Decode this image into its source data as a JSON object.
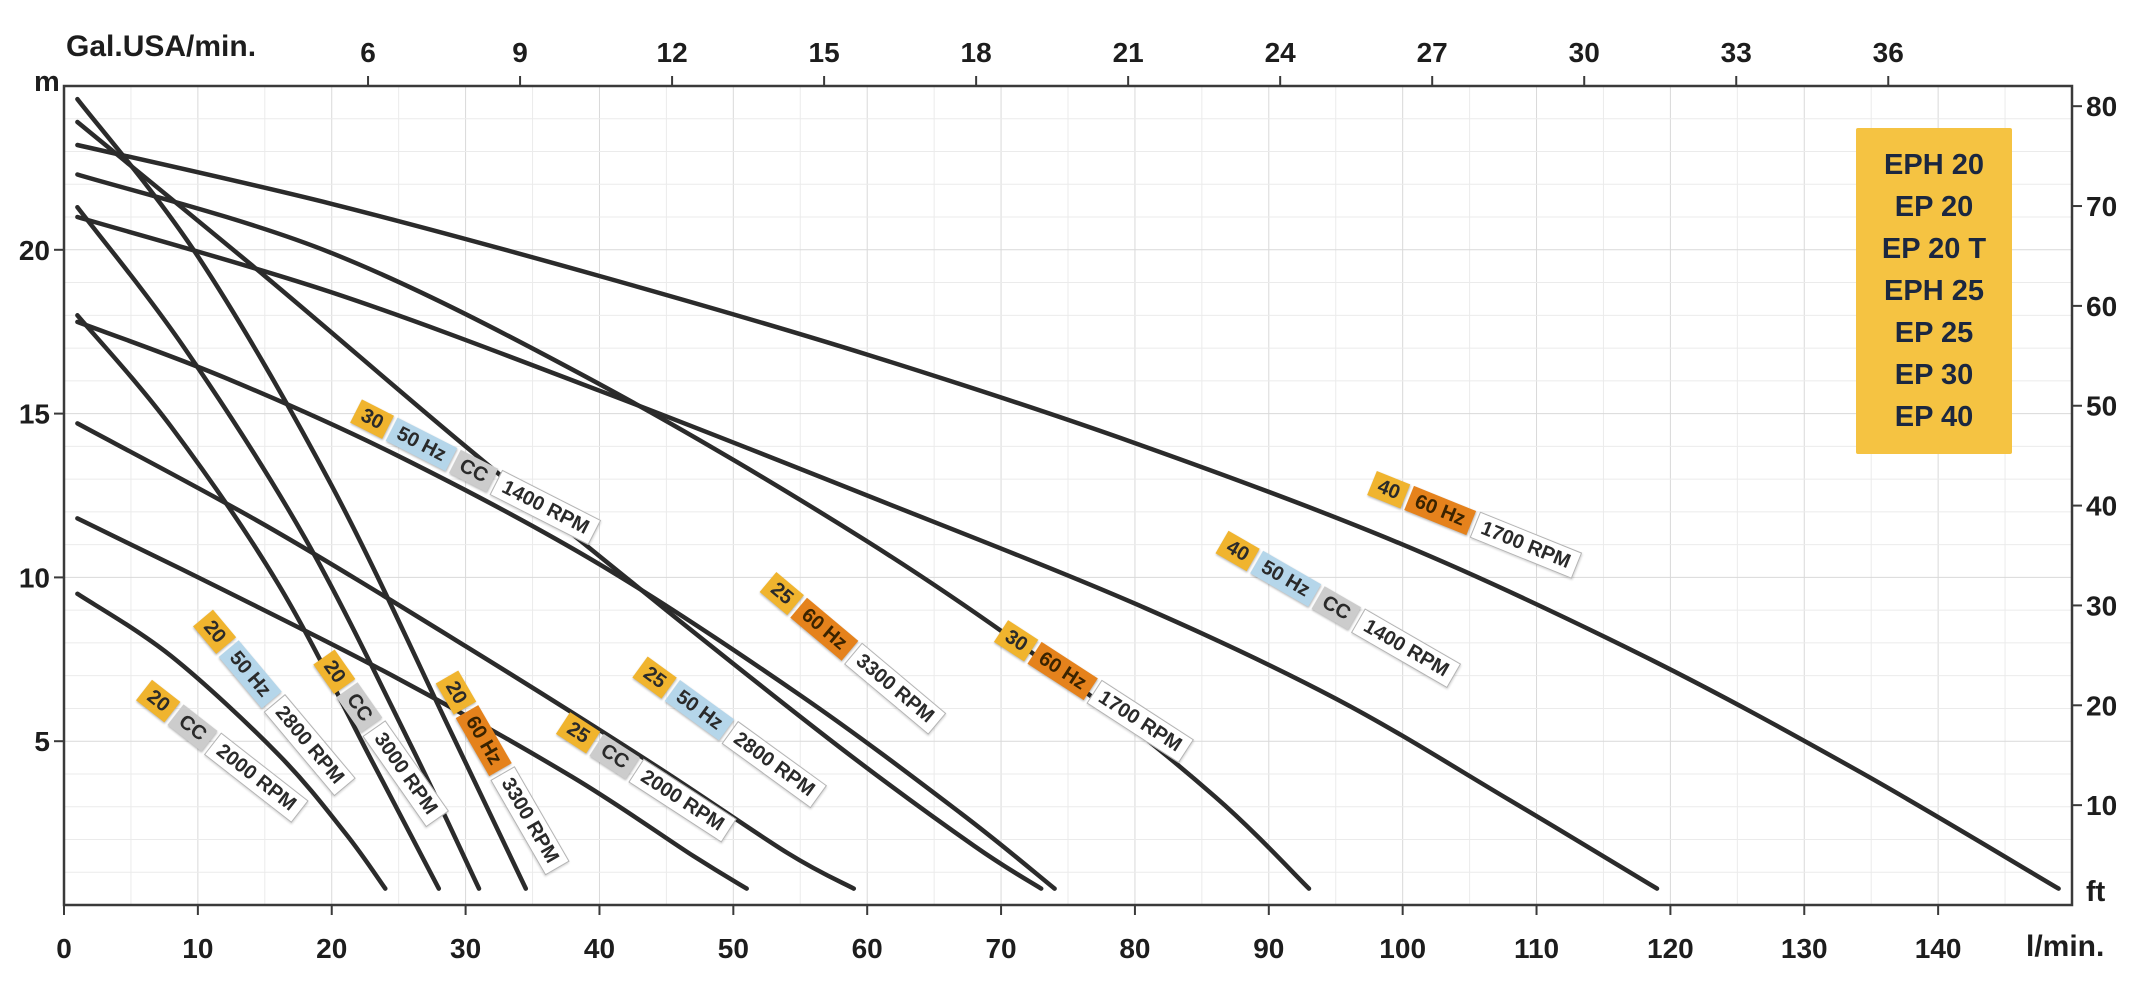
{
  "axes": {
    "top": {
      "label": "Gal.USA/min.",
      "ticks": [
        6,
        9,
        12,
        15,
        18,
        21,
        24,
        27,
        30,
        33,
        36
      ]
    },
    "bottom": {
      "label": "l/min.",
      "ticks": [
        0,
        10,
        20,
        30,
        40,
        50,
        60,
        70,
        80,
        90,
        100,
        110,
        120,
        130,
        140
      ]
    },
    "left": {
      "label": "m",
      "ticks": [
        5,
        10,
        15,
        20
      ]
    },
    "right": {
      "label": "ft",
      "ticks": [
        10,
        20,
        30,
        40,
        50,
        60,
        70,
        80
      ]
    }
  },
  "legend": {
    "bg": "#f5c342",
    "text_color": "#1b2740",
    "items": [
      "EPH 20",
      "EP 20",
      "EP 20 T",
      "EPH 25",
      "EP 25",
      "EP 30",
      "EP 40"
    ]
  },
  "colors": {
    "curve": "#2b2b2b",
    "frame": "#3a3a3a",
    "grid_minor": "#ebebeb",
    "grid_major": "#d9d9d9",
    "axis_text": "#1d1d1d",
    "badge_model_bg": "#f0b42e",
    "badge_50hz_bg": "#b5d6ea",
    "badge_60hz_bg": "#e5821c",
    "badge_cc_bg": "#cccccc",
    "badge_rpm_bg": "#ffffff"
  },
  "chart_data": {
    "type": "line",
    "x_unit": "l/min.",
    "x_range": [
      0,
      150
    ],
    "y_unit": "m",
    "y_range": [
      0,
      25
    ],
    "top_axis_unit": "Gal.USA/min.",
    "right_axis_unit": "ft",
    "lmin_per_gal": 3.7854,
    "m_per_ft": 0.3048,
    "grid": "on",
    "legend_position": "top-right",
    "series": [
      {
        "name": "20 CC 2000 RPM",
        "points": [
          [
            1,
            9.5
          ],
          [
            8,
            7.6
          ],
          [
            16,
            4.6
          ],
          [
            21,
            2.2
          ],
          [
            24,
            0.5
          ]
        ]
      },
      {
        "name": "20 50 Hz 2800 RPM",
        "points": [
          [
            1,
            18.0
          ],
          [
            8,
            14.6
          ],
          [
            16,
            9.8
          ],
          [
            23,
            4.4
          ],
          [
            28,
            0.5
          ]
        ]
      },
      {
        "name": "20 CC 3000 RPM",
        "points": [
          [
            1,
            21.3
          ],
          [
            9,
            17.0
          ],
          [
            18,
            11.2
          ],
          [
            26,
            4.8
          ],
          [
            31,
            0.5
          ]
        ]
      },
      {
        "name": "20 60 Hz 3300 RPM",
        "points": [
          [
            1,
            24.6
          ],
          [
            10,
            19.8
          ],
          [
            20,
            12.8
          ],
          [
            29,
            5.2
          ],
          [
            34.5,
            0.5
          ]
        ]
      },
      {
        "name": "25 CC 2000 RPM",
        "points": [
          [
            1,
            11.8
          ],
          [
            12,
            9.6
          ],
          [
            25,
            6.9
          ],
          [
            38,
            3.9
          ],
          [
            47,
            1.5
          ],
          [
            51,
            0.5
          ]
        ]
      },
      {
        "name": "25 50 Hz 2800 RPM",
        "points": [
          [
            1,
            14.7
          ],
          [
            15,
            11.6
          ],
          [
            30,
            7.9
          ],
          [
            44,
            4.3
          ],
          [
            54,
            1.6
          ],
          [
            59,
            0.5
          ]
        ]
      },
      {
        "name": "25 60 Hz 3300 RPM",
        "points": [
          [
            1,
            23.9
          ],
          [
            15,
            19.2
          ],
          [
            30,
            14.0
          ],
          [
            45,
            9.0
          ],
          [
            58,
            4.8
          ],
          [
            68,
            1.8
          ],
          [
            73,
            0.5
          ]
        ]
      },
      {
        "name": "30 50 Hz CC 1400 RPM",
        "points": [
          [
            1,
            17.8
          ],
          [
            12,
            16.1
          ],
          [
            25,
            13.7
          ],
          [
            40,
            10.4
          ],
          [
            55,
            6.4
          ],
          [
            67,
            2.8
          ],
          [
            74,
            0.5
          ]
        ]
      },
      {
        "name": "30 60 Hz 1700 RPM",
        "points": [
          [
            1,
            22.3
          ],
          [
            20,
            19.9
          ],
          [
            40,
            15.9
          ],
          [
            60,
            11.1
          ],
          [
            75,
            6.9
          ],
          [
            86,
            3.3
          ],
          [
            93,
            0.5
          ]
        ]
      },
      {
        "name": "40 50 Hz CC 1400 RPM",
        "points": [
          [
            1,
            21.0
          ],
          [
            20,
            18.7
          ],
          [
            40,
            15.7
          ],
          [
            60,
            12.5
          ],
          [
            80,
            9.2
          ],
          [
            95,
            6.3
          ],
          [
            108,
            3.2
          ],
          [
            119,
            0.5
          ]
        ]
      },
      {
        "name": "40 60 Hz 1700 RPM",
        "points": [
          [
            1,
            23.2
          ],
          [
            20,
            21.4
          ],
          [
            40,
            19.2
          ],
          [
            60,
            16.8
          ],
          [
            80,
            14.1
          ],
          [
            100,
            11.0
          ],
          [
            118,
            7.6
          ],
          [
            134,
            4.1
          ],
          [
            149,
            0.5
          ]
        ]
      }
    ],
    "labels": [
      {
        "series": 0,
        "q": 6.0,
        "h": 6.6,
        "rot": 38,
        "badges": [
          [
            "model",
            "20"
          ],
          [
            "cc",
            "CC"
          ],
          [
            "rpm",
            "2000 RPM"
          ]
        ]
      },
      {
        "series": 1,
        "q": 10.4,
        "h": 8.8,
        "rot": 50,
        "badges": [
          [
            "model",
            "20"
          ],
          [
            "hz50",
            "50 Hz"
          ],
          [
            "rpm",
            "2800 RPM"
          ]
        ]
      },
      {
        "series": 2,
        "q": 19.4,
        "h": 7.6,
        "rot": 55,
        "badges": [
          [
            "model",
            "20"
          ],
          [
            "cc",
            "CC"
          ],
          [
            "rpm",
            "3000 RPM"
          ]
        ]
      },
      {
        "series": 3,
        "q": 28.6,
        "h": 7.0,
        "rot": 60,
        "badges": [
          [
            "model",
            "20"
          ],
          [
            "hz60",
            "60 Hz"
          ],
          [
            "rpm",
            "3300 RPM"
          ]
        ]
      },
      {
        "series": 4,
        "q": 37.3,
        "h": 5.6,
        "rot": 33,
        "badges": [
          [
            "model",
            "25"
          ],
          [
            "cc",
            "CC"
          ],
          [
            "rpm",
            "2000 RPM"
          ]
        ]
      },
      {
        "series": 5,
        "q": 43.0,
        "h": 7.3,
        "rot": 36,
        "badges": [
          [
            "model",
            "25"
          ],
          [
            "hz50",
            "50 Hz"
          ],
          [
            "rpm",
            "2800 RPM"
          ]
        ]
      },
      {
        "series": 6,
        "q": 52.6,
        "h": 9.9,
        "rot": 40,
        "badges": [
          [
            "model",
            "25"
          ],
          [
            "hz60",
            "60 Hz"
          ],
          [
            "rpm",
            "3300 RPM"
          ]
        ]
      },
      {
        "series": 7,
        "q": 21.8,
        "h": 15.1,
        "rot": 27,
        "badges": [
          [
            "model",
            "30"
          ],
          [
            "hz50",
            "50 Hz"
          ],
          [
            "cc",
            "CC"
          ],
          [
            "rpm",
            "1400 RPM"
          ]
        ]
      },
      {
        "series": 8,
        "q": 70.0,
        "h": 8.4,
        "rot": 33,
        "badges": [
          [
            "model",
            "30"
          ],
          [
            "hz60",
            "60 Hz"
          ],
          [
            "rpm",
            "1700 RPM"
          ]
        ]
      },
      {
        "series": 9,
        "q": 86.5,
        "h": 11.1,
        "rot": 30,
        "badges": [
          [
            "model",
            "40"
          ],
          [
            "hz50",
            "50 Hz"
          ],
          [
            "cc",
            "CC"
          ],
          [
            "rpm",
            "1400 RPM"
          ]
        ]
      },
      {
        "series": 10,
        "q": 97.7,
        "h": 12.9,
        "rot": 22,
        "badges": [
          [
            "model",
            "40"
          ],
          [
            "hz60",
            "60 Hz"
          ],
          [
            "rpm",
            "1700 RPM"
          ]
        ]
      }
    ]
  }
}
